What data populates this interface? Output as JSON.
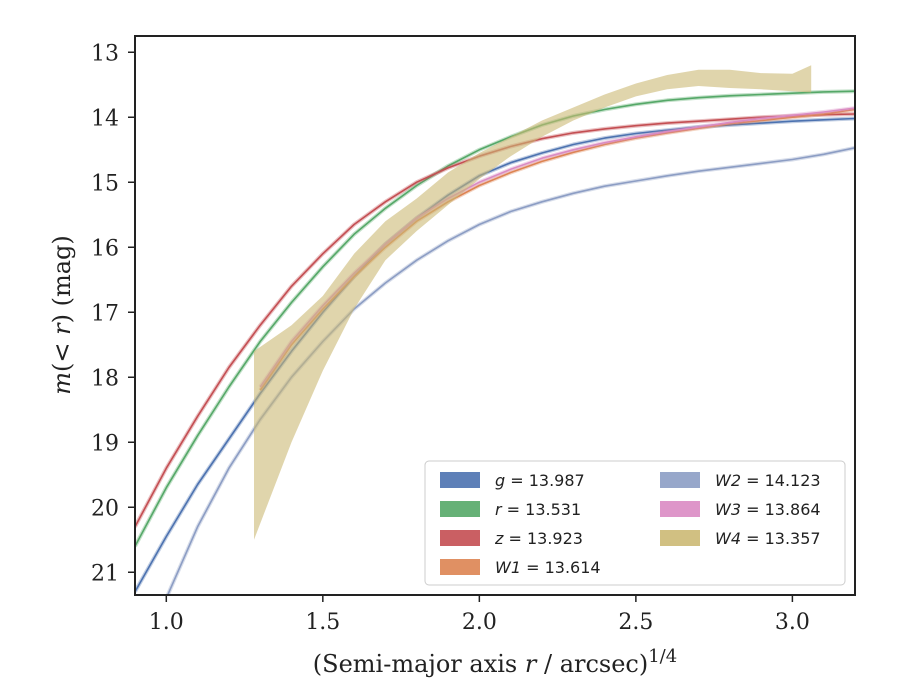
{
  "chart_data": {
    "type": "line",
    "title": "",
    "xlabel": "(Semi-major axis r / arcsec)",
    "xlabel_italic_var": "r",
    "xlabel_superscript": "1/4",
    "ylabel": "m(< r) (mag)",
    "xlim": [
      0.9,
      3.2
    ],
    "ylim": [
      21.35,
      12.75
    ],
    "y_inverted": true,
    "grid": false,
    "legend_position": "lower-right",
    "legend_columns": 2,
    "xticks": [
      1.0,
      1.5,
      2.0,
      2.5,
      3.0
    ],
    "xtick_labels": [
      "1.0",
      "1.5",
      "2.0",
      "2.5",
      "3.0"
    ],
    "yticks": [
      13,
      14,
      15,
      16,
      17,
      18,
      19,
      20,
      21
    ],
    "ytick_labels": [
      "13",
      "14",
      "15",
      "16",
      "17",
      "18",
      "19",
      "20",
      "21"
    ],
    "series": [
      {
        "key": "g",
        "name": "g = 13.987",
        "legend_var": "g",
        "legend_value": "13.987",
        "color": "#4c72b0",
        "x": [
          0.9,
          1.0,
          1.1,
          1.2,
          1.3,
          1.4,
          1.5,
          1.6,
          1.7,
          1.8,
          1.9,
          2.0,
          2.1,
          2.2,
          2.3,
          2.4,
          2.5,
          2.6,
          2.7,
          2.8,
          2.9,
          3.0,
          3.1,
          3.2
        ],
        "y": [
          21.3,
          20.45,
          19.65,
          18.95,
          18.25,
          17.6,
          17.0,
          16.45,
          15.95,
          15.55,
          15.2,
          14.9,
          14.7,
          14.55,
          14.42,
          14.32,
          14.25,
          14.2,
          14.15,
          14.12,
          14.09,
          14.06,
          14.04,
          14.02
        ]
      },
      {
        "key": "r",
        "name": "r = 13.531",
        "legend_var": "r",
        "legend_value": "13.531",
        "color": "#55a868",
        "x": [
          0.9,
          1.0,
          1.1,
          1.2,
          1.3,
          1.4,
          1.5,
          1.6,
          1.7,
          1.8,
          1.9,
          2.0,
          2.1,
          2.2,
          2.3,
          2.4,
          2.5,
          2.6,
          2.7,
          2.8,
          2.9,
          3.0,
          3.1,
          3.2
        ],
        "y": [
          20.6,
          19.7,
          18.9,
          18.15,
          17.45,
          16.85,
          16.3,
          15.8,
          15.4,
          15.05,
          14.75,
          14.5,
          14.3,
          14.12,
          13.98,
          13.88,
          13.8,
          13.74,
          13.7,
          13.67,
          13.65,
          13.63,
          13.61,
          13.6
        ]
      },
      {
        "key": "z",
        "name": "z = 13.923",
        "legend_var": "z",
        "legend_value": "13.923",
        "color": "#c44e52",
        "x": [
          0.9,
          1.0,
          1.1,
          1.2,
          1.3,
          1.4,
          1.5,
          1.6,
          1.7,
          1.8,
          1.9,
          2.0,
          2.1,
          2.2,
          2.3,
          2.4,
          2.5,
          2.6,
          2.7,
          2.8,
          2.9,
          3.0,
          3.1,
          3.2
        ],
        "y": [
          20.3,
          19.4,
          18.6,
          17.85,
          17.2,
          16.6,
          16.1,
          15.65,
          15.3,
          15.0,
          14.78,
          14.6,
          14.45,
          14.33,
          14.24,
          14.18,
          14.13,
          14.09,
          14.06,
          14.03,
          14.0,
          13.98,
          13.96,
          13.95
        ]
      },
      {
        "key": "W1",
        "name": "W1 = 13.614",
        "legend_var": "W1",
        "legend_value": "13.614",
        "color": "#dd8452",
        "x": [
          1.3,
          1.4,
          1.5,
          1.6,
          1.7,
          1.8,
          1.9,
          2.0,
          2.1,
          2.2,
          2.3,
          2.4,
          2.5,
          2.6,
          2.7,
          2.8,
          2.9,
          3.0,
          3.1,
          3.2
        ],
        "y": [
          18.2,
          17.5,
          16.95,
          16.45,
          16.0,
          15.6,
          15.3,
          15.05,
          14.85,
          14.68,
          14.54,
          14.42,
          14.32,
          14.24,
          14.17,
          14.1,
          14.05,
          14.0,
          13.95,
          13.88
        ]
      },
      {
        "key": "W2",
        "name": "W2 = 14.123",
        "legend_var": "W2",
        "legend_value": "14.123",
        "color": "#8c9dc4",
        "x": [
          1.0,
          1.1,
          1.2,
          1.3,
          1.4,
          1.5,
          1.6,
          1.7,
          1.8,
          1.9,
          2.0,
          2.1,
          2.2,
          2.3,
          2.4,
          2.5,
          2.6,
          2.7,
          2.8,
          2.9,
          3.0,
          3.1,
          3.2
        ],
        "y": [
          21.4,
          20.3,
          19.4,
          18.65,
          18.0,
          17.45,
          16.95,
          16.55,
          16.2,
          15.9,
          15.65,
          15.45,
          15.3,
          15.17,
          15.06,
          14.98,
          14.9,
          14.83,
          14.77,
          14.71,
          14.65,
          14.57,
          14.47
        ]
      },
      {
        "key": "W3",
        "name": "W3 = 13.864",
        "legend_var": "W3",
        "legend_value": "13.864",
        "color": "#da8bc3",
        "x": [
          1.3,
          1.4,
          1.5,
          1.6,
          1.7,
          1.8,
          1.9,
          2.0,
          2.1,
          2.2,
          2.3,
          2.4,
          2.5,
          2.6,
          2.7,
          2.8,
          2.9,
          3.0,
          3.1,
          3.2
        ],
        "y": [
          18.15,
          17.45,
          16.9,
          16.4,
          15.95,
          15.55,
          15.25,
          15.0,
          14.8,
          14.63,
          14.5,
          14.39,
          14.3,
          14.22,
          14.15,
          14.08,
          14.02,
          13.97,
          13.92,
          13.86
        ]
      },
      {
        "key": "W4",
        "name": "W4 = 13.357",
        "legend_var": "W4",
        "legend_value": "13.357",
        "color": "#ccb974",
        "band": true,
        "x": [
          1.28,
          1.4,
          1.5,
          1.6,
          1.7,
          1.8,
          1.9,
          2.0,
          2.1,
          2.2,
          2.3,
          2.4,
          2.5,
          2.6,
          2.7,
          2.8,
          2.9,
          3.0,
          3.06
        ],
        "y": [
          18.95,
          18.1,
          17.3,
          16.55,
          15.95,
          15.5,
          15.1,
          14.75,
          14.45,
          14.18,
          13.95,
          13.75,
          13.58,
          13.45,
          13.4,
          13.42,
          13.45,
          13.47,
          13.45
        ],
        "y_low": [
          20.5,
          19.0,
          17.9,
          16.95,
          16.2,
          15.75,
          15.35,
          14.95,
          14.6,
          14.3,
          14.05,
          13.85,
          13.68,
          13.57,
          13.52,
          13.55,
          13.57,
          13.6,
          13.62
        ],
        "y_high": [
          17.6,
          17.2,
          16.75,
          16.1,
          15.6,
          15.25,
          14.85,
          14.55,
          14.3,
          14.05,
          13.85,
          13.65,
          13.48,
          13.35,
          13.27,
          13.27,
          13.32,
          13.33,
          13.2
        ]
      }
    ]
  }
}
